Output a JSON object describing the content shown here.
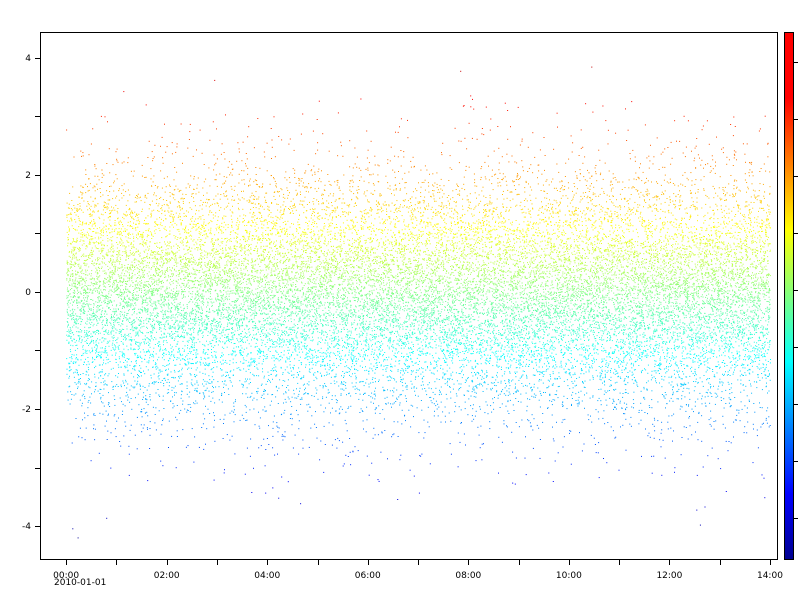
{
  "chart_data": {
    "type": "scatter",
    "title": "",
    "xlabel": "",
    "ylabel": "",
    "x_axis": {
      "kind": "time",
      "start": "2010-01-01 00:00",
      "end": "2010-01-01 14:00",
      "range_hours": [
        -0.52,
        14.14
      ],
      "tick_labels": [
        "00:00",
        "02:00",
        "04:00",
        "06:00",
        "08:00",
        "10:00",
        "12:00",
        "14:00"
      ],
      "tick_hours": [
        0,
        2,
        4,
        6,
        8,
        10,
        12,
        14
      ],
      "date_label": "2010-01-01"
    },
    "y_axis": {
      "range": [
        -4.58,
        4.44
      ],
      "tick_values": [
        -4,
        -2,
        0,
        2,
        4
      ],
      "tick_labels": [
        "-4",
        "-2",
        "0",
        "2",
        "4"
      ]
    },
    "series": [
      {
        "distribution": "normal",
        "mean": 0,
        "std": 1,
        "count": 22000,
        "x_span_hours": [
          0,
          14
        ],
        "color_by": "y"
      }
    ],
    "colormap": "jet",
    "color_range": [
      -4.4,
      4.4
    ],
    "colorbar": {
      "position": "right",
      "labels": []
    },
    "grid": false,
    "legend": "none"
  }
}
